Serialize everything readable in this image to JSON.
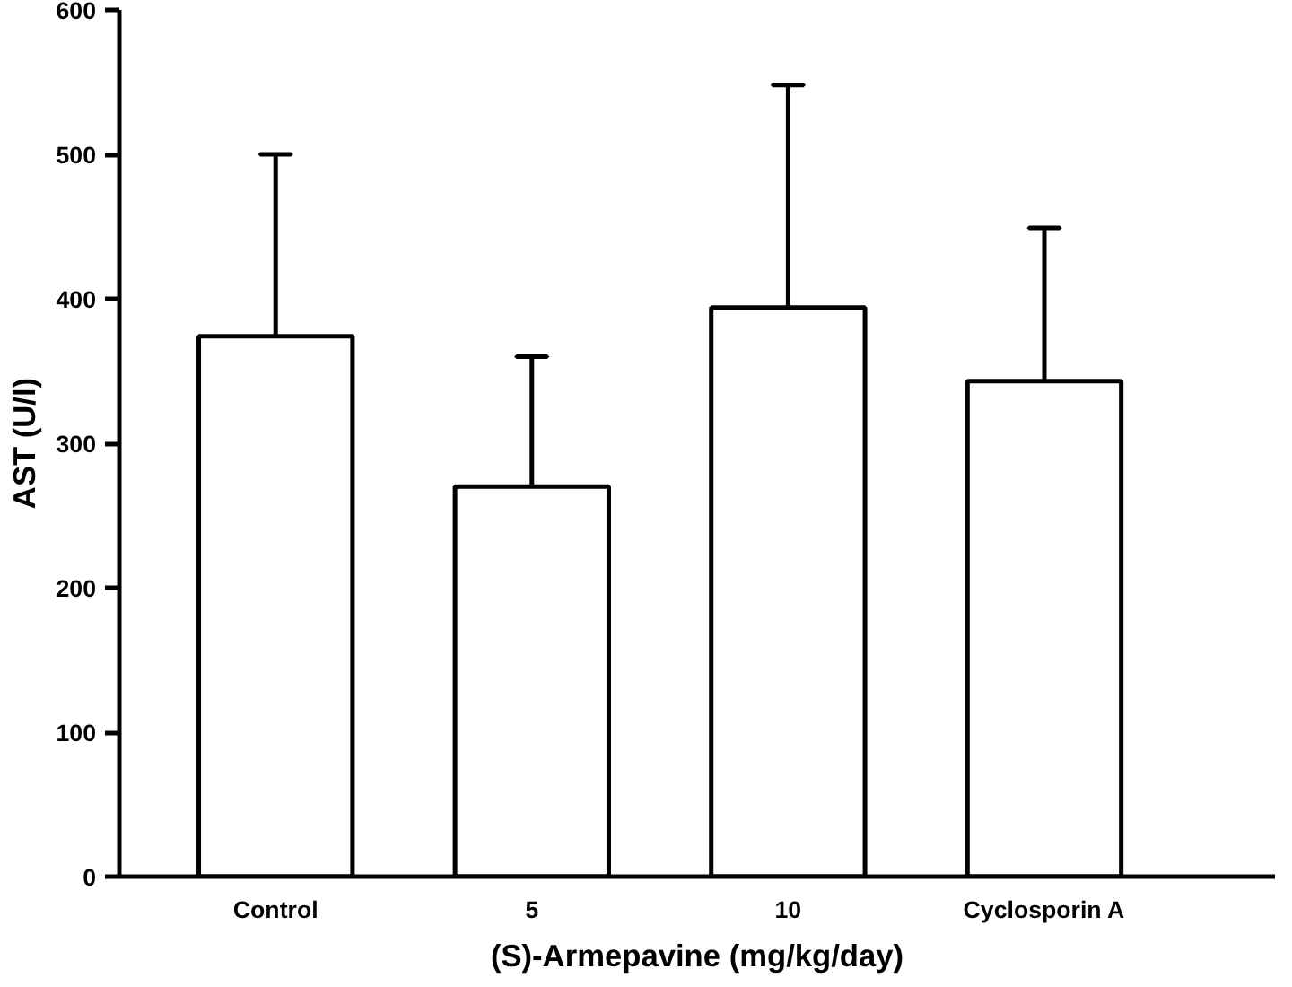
{
  "chart_data": {
    "type": "bar",
    "xlabel": "(S)-Armepavine (mg/kg/day)",
    "ylabel": "AST (U/l)",
    "categories": [
      "Control",
      "5",
      "10",
      "Cyclosporin A"
    ],
    "values": [
      374,
      270,
      394,
      343
    ],
    "errors": [
      [
        374,
        500
      ],
      [
        270,
        360
      ],
      [
        394,
        548
      ],
      [
        343,
        449
      ]
    ],
    "color": "#ffffff",
    "ylim": [
      0,
      600
    ],
    "yticks": [
      0,
      100,
      200,
      300,
      400,
      500,
      600
    ],
    "grid": false
  }
}
